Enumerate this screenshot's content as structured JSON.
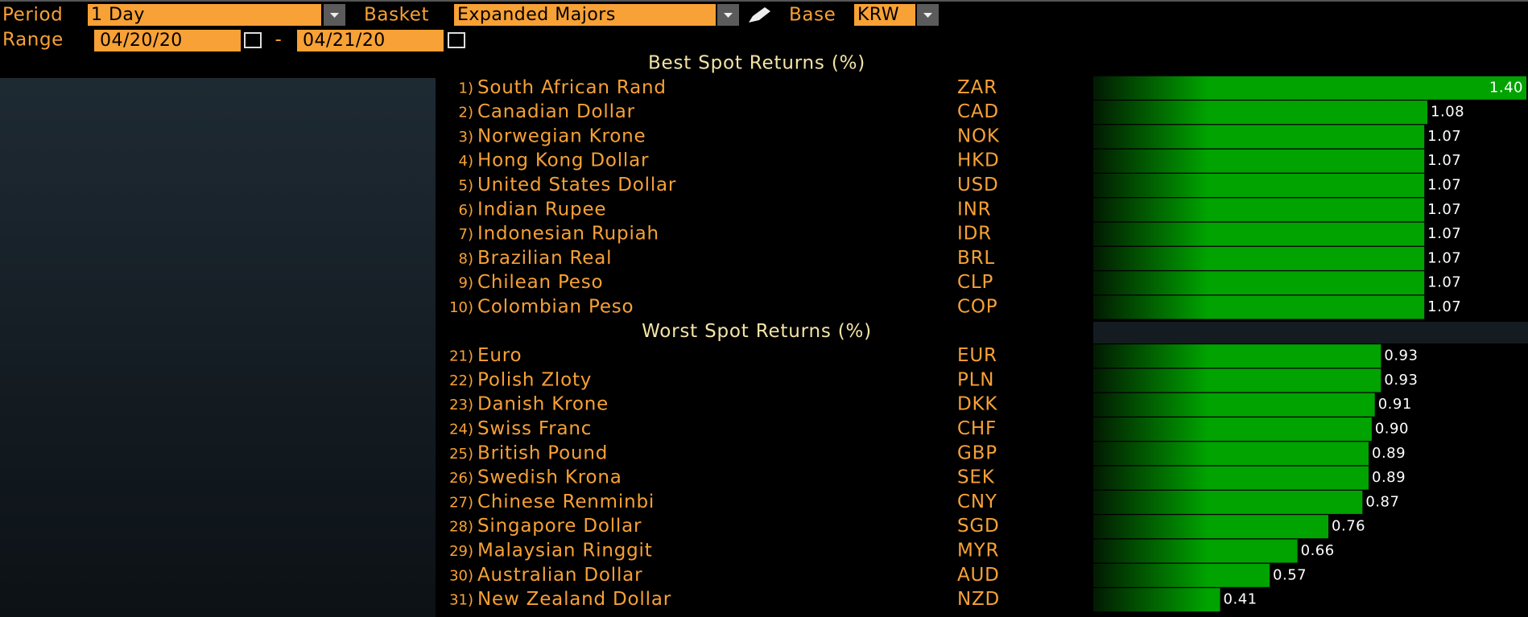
{
  "header": {
    "period_label": "Period",
    "period": "1 Day",
    "basket_label": "Basket",
    "basket": "Expanded Majors",
    "base_label": "Base",
    "base": "KRW",
    "range_label": "Range",
    "range_start": "04/20/20",
    "range_separator": "-",
    "range_end": "04/21/20"
  },
  "sections": [
    {
      "title": "Best Spot Returns (%)",
      "rows": [
        {
          "rank": "1)",
          "name": "South African Rand",
          "code": "ZAR",
          "value": 1.4,
          "value_label": "1.40"
        },
        {
          "rank": "2)",
          "name": "Canadian Dollar",
          "code": "CAD",
          "value": 1.08,
          "value_label": "1.08"
        },
        {
          "rank": "3)",
          "name": "Norwegian Krone",
          "code": "NOK",
          "value": 1.07,
          "value_label": "1.07"
        },
        {
          "rank": "4)",
          "name": "Hong Kong Dollar",
          "code": "HKD",
          "value": 1.07,
          "value_label": "1.07"
        },
        {
          "rank": "5)",
          "name": "United States Dollar",
          "code": "USD",
          "value": 1.07,
          "value_label": "1.07"
        },
        {
          "rank": "6)",
          "name": "Indian Rupee",
          "code": "INR",
          "value": 1.07,
          "value_label": "1.07"
        },
        {
          "rank": "7)",
          "name": "Indonesian Rupiah",
          "code": "IDR",
          "value": 1.07,
          "value_label": "1.07"
        },
        {
          "rank": "8)",
          "name": "Brazilian Real",
          "code": "BRL",
          "value": 1.07,
          "value_label": "1.07"
        },
        {
          "rank": "9)",
          "name": "Chilean Peso",
          "code": "CLP",
          "value": 1.07,
          "value_label": "1.07"
        },
        {
          "rank": "10)",
          "name": "Colombian Peso",
          "code": "COP",
          "value": 1.07,
          "value_label": "1.07"
        }
      ]
    },
    {
      "title": "Worst Spot Returns (%)",
      "rows": [
        {
          "rank": "21)",
          "name": "Euro",
          "code": "EUR",
          "value": 0.93,
          "value_label": "0.93"
        },
        {
          "rank": "22)",
          "name": "Polish Zloty",
          "code": "PLN",
          "value": 0.93,
          "value_label": "0.93"
        },
        {
          "rank": "23)",
          "name": "Danish Krone",
          "code": "DKK",
          "value": 0.91,
          "value_label": "0.91"
        },
        {
          "rank": "24)",
          "name": "Swiss Franc",
          "code": "CHF",
          "value": 0.9,
          "value_label": "0.90"
        },
        {
          "rank": "25)",
          "name": "British Pound",
          "code": "GBP",
          "value": 0.89,
          "value_label": "0.89"
        },
        {
          "rank": "26)",
          "name": "Swedish Krona",
          "code": "SEK",
          "value": 0.89,
          "value_label": "0.89"
        },
        {
          "rank": "27)",
          "name": "Chinese Renminbi",
          "code": "CNY",
          "value": 0.87,
          "value_label": "0.87"
        },
        {
          "rank": "28)",
          "name": "Singapore Dollar",
          "code": "SGD",
          "value": 0.76,
          "value_label": "0.76"
        },
        {
          "rank": "29)",
          "name": "Malaysian Ringgit",
          "code": "MYR",
          "value": 0.66,
          "value_label": "0.66"
        },
        {
          "rank": "30)",
          "name": "Australian Dollar",
          "code": "AUD",
          "value": 0.57,
          "value_label": "0.57"
        },
        {
          "rank": "31)",
          "name": "New Zealand Dollar",
          "code": "NZD",
          "value": 0.41,
          "value_label": "0.41"
        }
      ]
    }
  ]
}
